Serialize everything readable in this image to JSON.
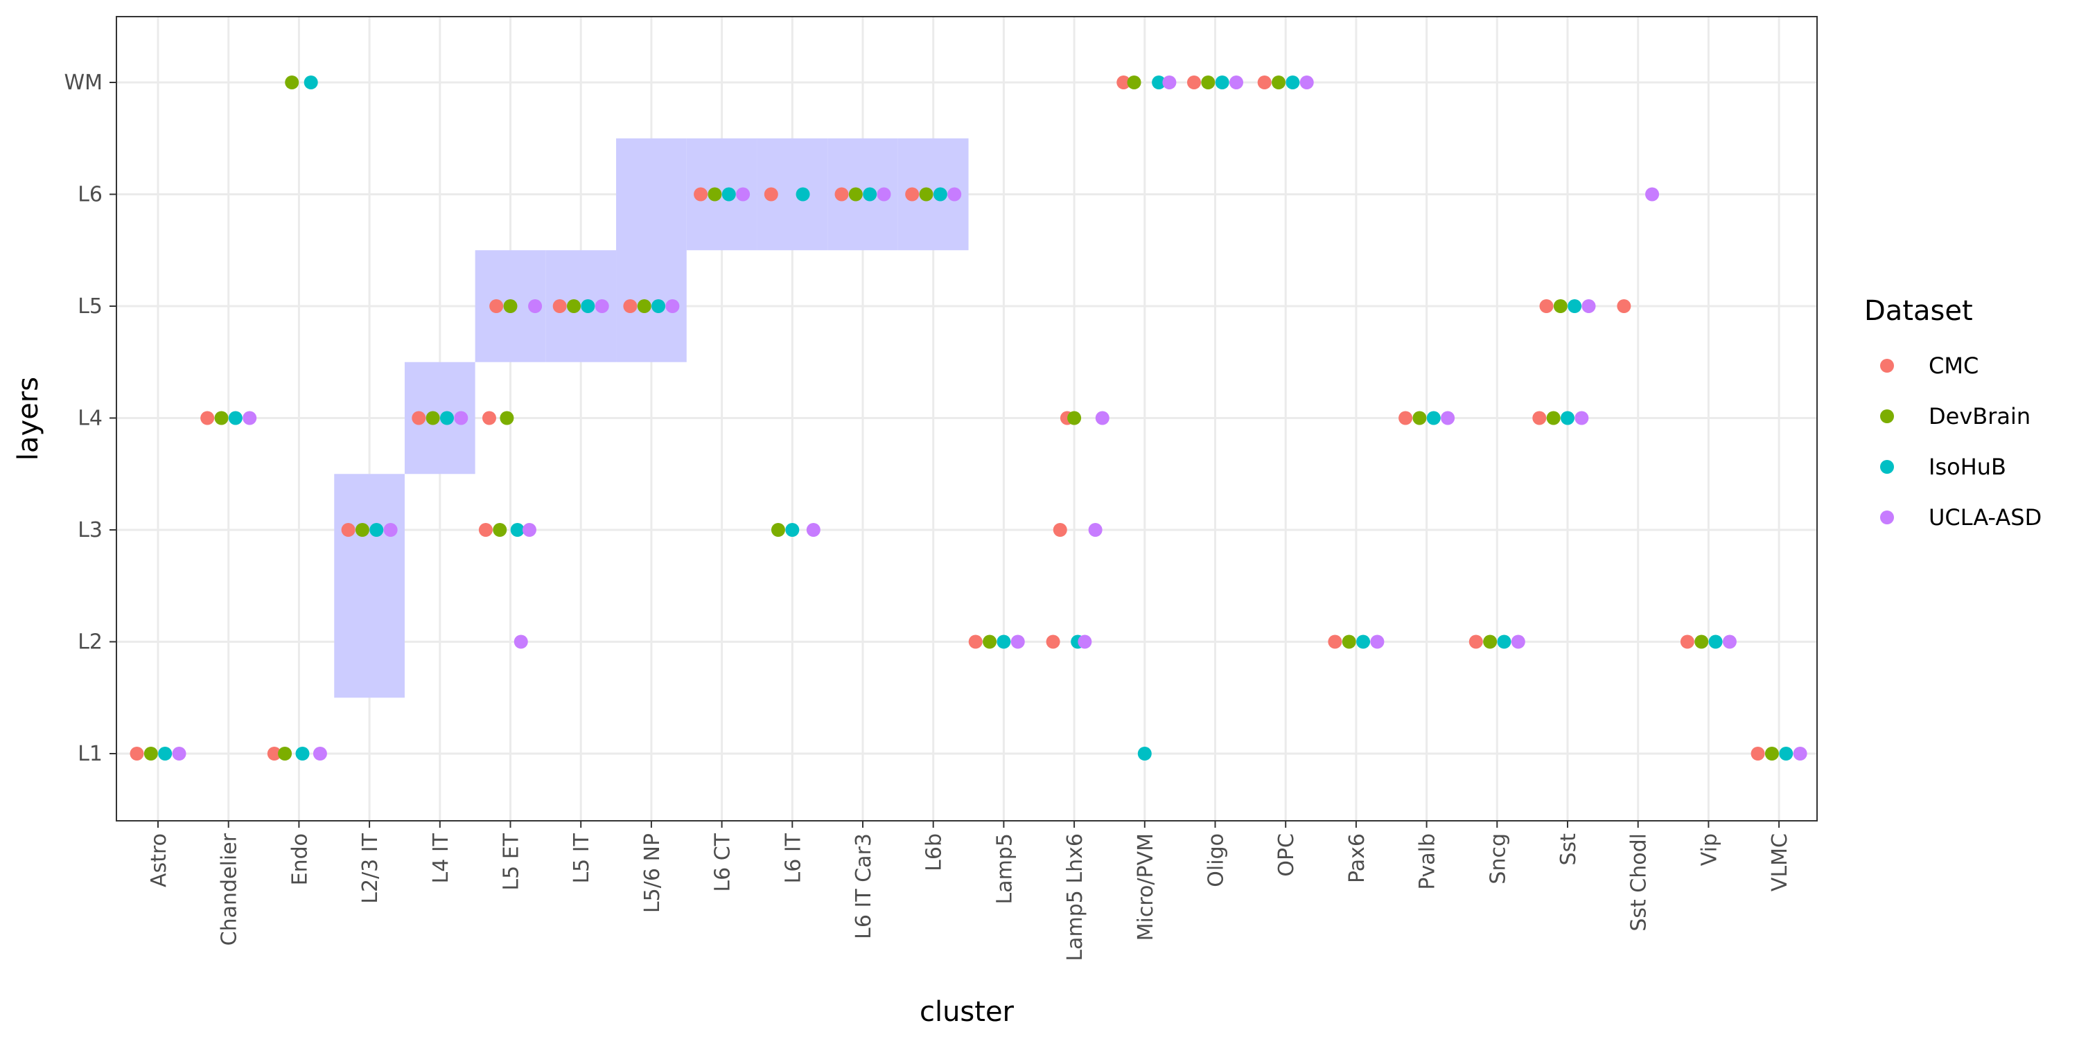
{
  "chart_data": {
    "type": "scatter",
    "xlabel": "cluster",
    "ylabel": "layers",
    "x_categories": [
      "Astro",
      "Chandelier",
      "Endo",
      "L2/3 IT",
      "L4 IT",
      "L5 ET",
      "L5 IT",
      "L5/6 NP",
      "L6 CT",
      "L6 IT",
      "L6 IT Car3",
      "L6b",
      "Lamp5",
      "Lamp5 Lhx6",
      "Micro/PVM",
      "Oligo",
      "OPC",
      "Pax6",
      "Pvalb",
      "Sncg",
      "Sst",
      "Sst Chodl",
      "Vip",
      "VLMC"
    ],
    "y_categories": [
      "L1",
      "L2",
      "L3",
      "L4",
      "L5",
      "L6",
      "WM"
    ],
    "grid": true,
    "legend": {
      "title": "Dataset",
      "placement": "right",
      "entries": [
        "CMC",
        "DevBrain",
        "IsoHuB",
        "UCLA-ASD"
      ]
    },
    "colors": {
      "CMC": "#F8766D",
      "DevBrain": "#7CAE00",
      "IsoHuB": "#00BFC4",
      "UCLA-ASD": "#C77CFF",
      "highlight": "#CCCCFF",
      "grid": "#EBEBEB",
      "panel_border": "#333333"
    },
    "highlight_regions": [
      {
        "cluster": "L2/3 IT",
        "layers": [
          "L2",
          "L3"
        ]
      },
      {
        "cluster": "L4 IT",
        "layers": [
          "L4"
        ]
      },
      {
        "cluster": "L5 ET",
        "layers": [
          "L5"
        ]
      },
      {
        "cluster": "L5 IT",
        "layers": [
          "L5"
        ]
      },
      {
        "cluster": "L5/6 NP",
        "layers": [
          "L5",
          "L6"
        ]
      },
      {
        "cluster": "L6 CT",
        "layers": [
          "L6"
        ]
      },
      {
        "cluster": "L6 IT",
        "layers": [
          "L6"
        ]
      },
      {
        "cluster": "L6 IT Car3",
        "layers": [
          "L6"
        ]
      },
      {
        "cluster": "L6b",
        "layers": [
          "L6"
        ]
      }
    ],
    "series": [
      {
        "name": "CMC",
        "points": [
          {
            "cluster": "Astro",
            "layer": "L1",
            "x_offset": -0.3
          },
          {
            "cluster": "Chandelier",
            "layer": "L4",
            "x_offset": -0.3
          },
          {
            "cluster": "Endo",
            "layer": "L1",
            "x_offset": -0.35
          },
          {
            "cluster": "L2/3 IT",
            "layer": "L3",
            "x_offset": -0.3
          },
          {
            "cluster": "L4 IT",
            "layer": "L4",
            "x_offset": -0.3
          },
          {
            "cluster": "L5 ET",
            "layer": "L5",
            "x_offset": -0.2
          },
          {
            "cluster": "L5 ET",
            "layer": "L4",
            "x_offset": -0.3
          },
          {
            "cluster": "L5 ET",
            "layer": "L3",
            "x_offset": -0.35
          },
          {
            "cluster": "L5 IT",
            "layer": "L5",
            "x_offset": -0.3
          },
          {
            "cluster": "L5/6 NP",
            "layer": "L5",
            "x_offset": -0.3
          },
          {
            "cluster": "L6 CT",
            "layer": "L6",
            "x_offset": -0.3
          },
          {
            "cluster": "L6 IT",
            "layer": "L6",
            "x_offset": -0.3
          },
          {
            "cluster": "L6 IT Car3",
            "layer": "L6",
            "x_offset": -0.3
          },
          {
            "cluster": "L6b",
            "layer": "L6",
            "x_offset": -0.3
          },
          {
            "cluster": "Lamp5",
            "layer": "L2",
            "x_offset": -0.4
          },
          {
            "cluster": "Lamp5 Lhx6",
            "layer": "L4",
            "x_offset": -0.1
          },
          {
            "cluster": "Lamp5 Lhx6",
            "layer": "L3",
            "x_offset": -0.2
          },
          {
            "cluster": "Lamp5 Lhx6",
            "layer": "L2",
            "x_offset": -0.3
          },
          {
            "cluster": "Micro/PVM",
            "layer": "WM",
            "x_offset": -0.3
          },
          {
            "cluster": "Oligo",
            "layer": "WM",
            "x_offset": -0.3
          },
          {
            "cluster": "OPC",
            "layer": "WM",
            "x_offset": -0.3
          },
          {
            "cluster": "Pax6",
            "layer": "L2",
            "x_offset": -0.3
          },
          {
            "cluster": "Pvalb",
            "layer": "L4",
            "x_offset": -0.3
          },
          {
            "cluster": "Sncg",
            "layer": "L2",
            "x_offset": -0.3
          },
          {
            "cluster": "Sst",
            "layer": "L5",
            "x_offset": -0.3
          },
          {
            "cluster": "Sst",
            "layer": "L4",
            "x_offset": -0.4
          },
          {
            "cluster": "Sst Chodl",
            "layer": "L5",
            "x_offset": -0.2
          },
          {
            "cluster": "Vip",
            "layer": "L2",
            "x_offset": -0.3
          },
          {
            "cluster": "VLMC",
            "layer": "L1",
            "x_offset": -0.3
          }
        ]
      },
      {
        "name": "DevBrain",
        "points": [
          {
            "cluster": "Astro",
            "layer": "L1",
            "x_offset": -0.1
          },
          {
            "cluster": "Chandelier",
            "layer": "L4",
            "x_offset": -0.1
          },
          {
            "cluster": "Endo",
            "layer": "L1",
            "x_offset": -0.2
          },
          {
            "cluster": "Endo",
            "layer": "WM",
            "x_offset": -0.1
          },
          {
            "cluster": "L2/3 IT",
            "layer": "L3",
            "x_offset": -0.1
          },
          {
            "cluster": "L4 IT",
            "layer": "L4",
            "x_offset": -0.1
          },
          {
            "cluster": "L5 ET",
            "layer": "L5",
            "x_offset": 0.0
          },
          {
            "cluster": "L5 ET",
            "layer": "L4",
            "x_offset": -0.05
          },
          {
            "cluster": "L5 ET",
            "layer": "L3",
            "x_offset": -0.15
          },
          {
            "cluster": "L5 IT",
            "layer": "L5",
            "x_offset": -0.1
          },
          {
            "cluster": "L5/6 NP",
            "layer": "L5",
            "x_offset": -0.1
          },
          {
            "cluster": "L6 CT",
            "layer": "L6",
            "x_offset": -0.1
          },
          {
            "cluster": "L6 IT",
            "layer": "L3",
            "x_offset": -0.2
          },
          {
            "cluster": "L6 IT Car3",
            "layer": "L6",
            "x_offset": -0.1
          },
          {
            "cluster": "L6b",
            "layer": "L6",
            "x_offset": -0.1
          },
          {
            "cluster": "Lamp5",
            "layer": "L2",
            "x_offset": -0.2
          },
          {
            "cluster": "Lamp5 Lhx6",
            "layer": "L4",
            "x_offset": 0.0
          },
          {
            "cluster": "Micro/PVM",
            "layer": "WM",
            "x_offset": -0.15
          },
          {
            "cluster": "Oligo",
            "layer": "WM",
            "x_offset": -0.1
          },
          {
            "cluster": "OPC",
            "layer": "WM",
            "x_offset": -0.1
          },
          {
            "cluster": "Pax6",
            "layer": "L2",
            "x_offset": -0.1
          },
          {
            "cluster": "Pvalb",
            "layer": "L4",
            "x_offset": -0.1
          },
          {
            "cluster": "Sncg",
            "layer": "L2",
            "x_offset": -0.1
          },
          {
            "cluster": "Sst",
            "layer": "L5",
            "x_offset": -0.1
          },
          {
            "cluster": "Sst",
            "layer": "L4",
            "x_offset": -0.2
          },
          {
            "cluster": "Vip",
            "layer": "L2",
            "x_offset": -0.1
          },
          {
            "cluster": "VLMC",
            "layer": "L1",
            "x_offset": -0.1
          }
        ]
      },
      {
        "name": "IsoHuB",
        "points": [
          {
            "cluster": "Astro",
            "layer": "L1",
            "x_offset": 0.1
          },
          {
            "cluster": "Chandelier",
            "layer": "L4",
            "x_offset": 0.1
          },
          {
            "cluster": "Endo",
            "layer": "L1",
            "x_offset": 0.05
          },
          {
            "cluster": "Endo",
            "layer": "WM",
            "x_offset": 0.17
          },
          {
            "cluster": "L2/3 IT",
            "layer": "L3",
            "x_offset": 0.1
          },
          {
            "cluster": "L4 IT",
            "layer": "L4",
            "x_offset": 0.1
          },
          {
            "cluster": "L5 ET",
            "layer": "L3",
            "x_offset": 0.1
          },
          {
            "cluster": "L5 IT",
            "layer": "L5",
            "x_offset": 0.1
          },
          {
            "cluster": "L5/6 NP",
            "layer": "L5",
            "x_offset": 0.1
          },
          {
            "cluster": "L6 CT",
            "layer": "L6",
            "x_offset": 0.1
          },
          {
            "cluster": "L6 IT",
            "layer": "L6",
            "x_offset": 0.15
          },
          {
            "cluster": "L6 IT",
            "layer": "L3",
            "x_offset": 0.0
          },
          {
            "cluster": "L6 IT Car3",
            "layer": "L6",
            "x_offset": 0.1
          },
          {
            "cluster": "L6b",
            "layer": "L6",
            "x_offset": 0.1
          },
          {
            "cluster": "Lamp5",
            "layer": "L2",
            "x_offset": 0.0
          },
          {
            "cluster": "Lamp5 Lhx6",
            "layer": "L2",
            "x_offset": 0.05
          },
          {
            "cluster": "Micro/PVM",
            "layer": "WM",
            "x_offset": 0.2
          },
          {
            "cluster": "Micro/PVM",
            "layer": "L1",
            "x_offset": 0.0
          },
          {
            "cluster": "Oligo",
            "layer": "WM",
            "x_offset": 0.1
          },
          {
            "cluster": "OPC",
            "layer": "WM",
            "x_offset": 0.1
          },
          {
            "cluster": "Pax6",
            "layer": "L2",
            "x_offset": 0.1
          },
          {
            "cluster": "Pvalb",
            "layer": "L4",
            "x_offset": 0.1
          },
          {
            "cluster": "Sncg",
            "layer": "L2",
            "x_offset": 0.1
          },
          {
            "cluster": "Sst",
            "layer": "L5",
            "x_offset": 0.1
          },
          {
            "cluster": "Sst",
            "layer": "L4",
            "x_offset": 0.0
          },
          {
            "cluster": "Vip",
            "layer": "L2",
            "x_offset": 0.1
          },
          {
            "cluster": "VLMC",
            "layer": "L1",
            "x_offset": 0.1
          }
        ]
      },
      {
        "name": "UCLA-ASD",
        "points": [
          {
            "cluster": "Astro",
            "layer": "L1",
            "x_offset": 0.3
          },
          {
            "cluster": "Chandelier",
            "layer": "L4",
            "x_offset": 0.3
          },
          {
            "cluster": "Endo",
            "layer": "L1",
            "x_offset": 0.3
          },
          {
            "cluster": "L2/3 IT",
            "layer": "L3",
            "x_offset": 0.3
          },
          {
            "cluster": "L4 IT",
            "layer": "L4",
            "x_offset": 0.3
          },
          {
            "cluster": "L5 ET",
            "layer": "L5",
            "x_offset": 0.35
          },
          {
            "cluster": "L5 ET",
            "layer": "L3",
            "x_offset": 0.27
          },
          {
            "cluster": "L5 ET",
            "layer": "L2",
            "x_offset": 0.15
          },
          {
            "cluster": "L5 IT",
            "layer": "L5",
            "x_offset": 0.3
          },
          {
            "cluster": "L5/6 NP",
            "layer": "L5",
            "x_offset": 0.3
          },
          {
            "cluster": "L6 CT",
            "layer": "L6",
            "x_offset": 0.3
          },
          {
            "cluster": "L6 IT",
            "layer": "L3",
            "x_offset": 0.3
          },
          {
            "cluster": "L6 IT Car3",
            "layer": "L6",
            "x_offset": 0.3
          },
          {
            "cluster": "L6b",
            "layer": "L6",
            "x_offset": 0.3
          },
          {
            "cluster": "Lamp5",
            "layer": "L2",
            "x_offset": 0.2
          },
          {
            "cluster": "Lamp5 Lhx6",
            "layer": "L4",
            "x_offset": 0.4
          },
          {
            "cluster": "Lamp5 Lhx6",
            "layer": "L3",
            "x_offset": 0.3
          },
          {
            "cluster": "Lamp5 Lhx6",
            "layer": "L2",
            "x_offset": 0.15
          },
          {
            "cluster": "Micro/PVM",
            "layer": "WM",
            "x_offset": 0.35
          },
          {
            "cluster": "Oligo",
            "layer": "WM",
            "x_offset": 0.3
          },
          {
            "cluster": "OPC",
            "layer": "WM",
            "x_offset": 0.3
          },
          {
            "cluster": "Pax6",
            "layer": "L2",
            "x_offset": 0.3
          },
          {
            "cluster": "Pvalb",
            "layer": "L4",
            "x_offset": 0.3
          },
          {
            "cluster": "Sncg",
            "layer": "L2",
            "x_offset": 0.3
          },
          {
            "cluster": "Sst",
            "layer": "L5",
            "x_offset": 0.3
          },
          {
            "cluster": "Sst",
            "layer": "L4",
            "x_offset": 0.2
          },
          {
            "cluster": "Sst Chodl",
            "layer": "L6",
            "x_offset": 0.2
          },
          {
            "cluster": "Vip",
            "layer": "L2",
            "x_offset": 0.3
          },
          {
            "cluster": "VLMC",
            "layer": "L1",
            "x_offset": 0.3
          }
        ]
      }
    ]
  }
}
